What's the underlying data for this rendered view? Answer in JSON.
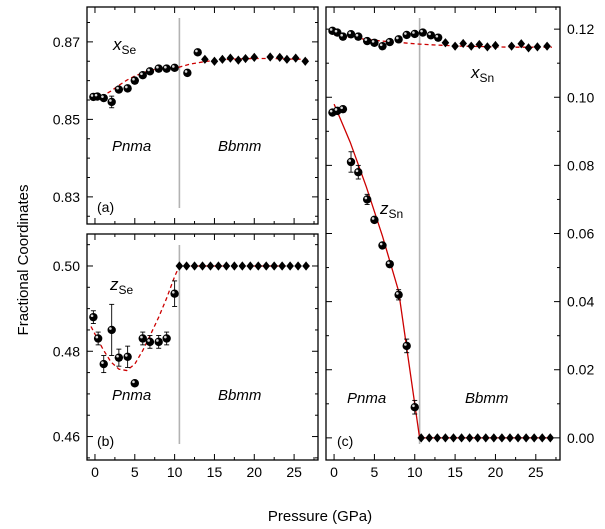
{
  "ylabel": "Fractional Coordinates",
  "xlabel": "Pressure (GPa)",
  "chart_data": [
    {
      "panel": "(a)",
      "type": "scatter",
      "series_label": {
        "main": "x",
        "sub": "Se"
      },
      "xlim": [
        -1,
        28
      ],
      "ylim": [
        0.823,
        0.879
      ],
      "xticks": [
        0,
        5,
        10,
        15,
        20,
        25
      ],
      "yticks": [
        0.83,
        0.85,
        0.87
      ],
      "ytick_labels": [
        "0.83",
        "0.85",
        "0.87"
      ],
      "transition_pressure": 10.6,
      "phase_labels": [
        "Pnma",
        "Bbmm"
      ],
      "fit_curve": {
        "style": "dashed",
        "color": "#cc0000",
        "x": [
          0,
          1,
          2,
          3,
          4,
          5,
          6,
          7,
          8,
          9,
          10,
          10.6,
          12,
          14,
          16,
          18,
          20,
          22,
          24,
          26,
          27
        ],
        "y": [
          0.8552,
          0.8561,
          0.8573,
          0.8588,
          0.8601,
          0.8612,
          0.862,
          0.8627,
          0.863,
          0.8632,
          0.8634,
          0.8635,
          0.8643,
          0.865,
          0.8654,
          0.8656,
          0.8657,
          0.8657,
          0.8656,
          0.8655,
          0.8654
        ]
      },
      "points": [
        {
          "x": -0.2,
          "y": 0.8558,
          "marker": "circle"
        },
        {
          "x": 0.3,
          "y": 0.8559,
          "marker": "circle"
        },
        {
          "x": 1.1,
          "y": 0.8555,
          "marker": "circle"
        },
        {
          "x": 2.1,
          "y": 0.8545,
          "marker": "circle",
          "err": 0.0015
        },
        {
          "x": 3.0,
          "y": 0.8577,
          "marker": "circle"
        },
        {
          "x": 4.1,
          "y": 0.858,
          "marker": "circle"
        },
        {
          "x": 5.0,
          "y": 0.86,
          "marker": "circle"
        },
        {
          "x": 6.0,
          "y": 0.8614,
          "marker": "circle"
        },
        {
          "x": 6.9,
          "y": 0.8624,
          "marker": "circle"
        },
        {
          "x": 8.0,
          "y": 0.8631,
          "marker": "circle"
        },
        {
          "x": 9.0,
          "y": 0.8631,
          "marker": "circle"
        },
        {
          "x": 10.0,
          "y": 0.8633,
          "marker": "circle"
        },
        {
          "x": 11.6,
          "y": 0.862,
          "marker": "circle"
        },
        {
          "x": 12.9,
          "y": 0.8673,
          "marker": "circle"
        },
        {
          "x": 13.8,
          "y": 0.8655,
          "marker": "diamond"
        },
        {
          "x": 15.0,
          "y": 0.865,
          "marker": "diamond"
        },
        {
          "x": 16.0,
          "y": 0.8655,
          "marker": "diamond"
        },
        {
          "x": 17.0,
          "y": 0.8658,
          "marker": "diamond"
        },
        {
          "x": 18.0,
          "y": 0.8653,
          "marker": "diamond"
        },
        {
          "x": 18.9,
          "y": 0.8657,
          "marker": "diamond"
        },
        {
          "x": 20.0,
          "y": 0.866,
          "marker": "diamond"
        },
        {
          "x": 22.0,
          "y": 0.8661,
          "marker": "diamond"
        },
        {
          "x": 23.2,
          "y": 0.866,
          "marker": "diamond"
        },
        {
          "x": 24.1,
          "y": 0.8655,
          "marker": "diamond"
        },
        {
          "x": 25.2,
          "y": 0.8658,
          "marker": "diamond"
        },
        {
          "x": 26.4,
          "y": 0.865,
          "marker": "diamond"
        }
      ]
    },
    {
      "panel": "(b)",
      "type": "scatter",
      "series_label": {
        "main": "z",
        "sub": "Se"
      },
      "xlim": [
        -1,
        28
      ],
      "ylim": [
        0.4545,
        0.5075
      ],
      "xticks": [
        0,
        5,
        10,
        15,
        20,
        25
      ],
      "xtick_labels": [
        "0",
        "5",
        "10",
        "15",
        "20",
        "25"
      ],
      "yticks": [
        0.46,
        0.48,
        0.5
      ],
      "ytick_labels": [
        "0.46",
        "0.48",
        "0.50"
      ],
      "transition_pressure": 10.6,
      "phase_labels": [
        "Pnma",
        "Bbmm"
      ],
      "fit_curve": {
        "style": "dashed",
        "color": "#cc0000",
        "x": [
          -0.5,
          0,
          1,
          2,
          3,
          4,
          5,
          6,
          7,
          8,
          9,
          10,
          10.6,
          12,
          14,
          16,
          18,
          20,
          22,
          24,
          26,
          27
        ],
        "y": [
          0.4858,
          0.484,
          0.4805,
          0.4775,
          0.4758,
          0.4755,
          0.477,
          0.4802,
          0.484,
          0.488,
          0.4925,
          0.4975,
          0.5,
          0.5,
          0.5,
          0.5,
          0.5,
          0.5,
          0.5,
          0.5,
          0.5,
          0.5
        ]
      },
      "points": [
        {
          "x": -0.2,
          "y": 0.488,
          "marker": "circle",
          "err": 0.0015
        },
        {
          "x": 0.4,
          "y": 0.483,
          "marker": "circle",
          "err": 0.0015
        },
        {
          "x": 1.1,
          "y": 0.477,
          "marker": "circle",
          "err": 0.002
        },
        {
          "x": 2.1,
          "y": 0.485,
          "marker": "circle",
          "err": 0.006
        },
        {
          "x": 3.0,
          "y": 0.4785,
          "marker": "circle",
          "err": 0.002
        },
        {
          "x": 4.1,
          "y": 0.4787,
          "marker": "circle",
          "err": 0.0025
        },
        {
          "x": 5.0,
          "y": 0.4725,
          "marker": "circle"
        },
        {
          "x": 6.0,
          "y": 0.483,
          "marker": "circle",
          "err": 0.0015
        },
        {
          "x": 6.9,
          "y": 0.4822,
          "marker": "circle",
          "err": 0.0015
        },
        {
          "x": 8.0,
          "y": 0.4822,
          "marker": "circle",
          "err": 0.0015
        },
        {
          "x": 9.0,
          "y": 0.483,
          "marker": "circle",
          "err": 0.0015
        },
        {
          "x": 10.0,
          "y": 0.4935,
          "marker": "circle",
          "err": 0.003
        },
        {
          "x": 10.6,
          "y": 0.5,
          "marker": "diamond"
        },
        {
          "x": 11.5,
          "y": 0.5,
          "marker": "diamond"
        },
        {
          "x": 12.5,
          "y": 0.5,
          "marker": "diamond"
        },
        {
          "x": 13.5,
          "y": 0.5,
          "marker": "diamond"
        },
        {
          "x": 14.5,
          "y": 0.5,
          "marker": "diamond"
        },
        {
          "x": 15.5,
          "y": 0.5,
          "marker": "diamond"
        },
        {
          "x": 16.5,
          "y": 0.5,
          "marker": "diamond"
        },
        {
          "x": 17.5,
          "y": 0.5,
          "marker": "diamond"
        },
        {
          "x": 18.5,
          "y": 0.5,
          "marker": "diamond"
        },
        {
          "x": 19.5,
          "y": 0.5,
          "marker": "diamond"
        },
        {
          "x": 20.5,
          "y": 0.5,
          "marker": "diamond"
        },
        {
          "x": 21.5,
          "y": 0.5,
          "marker": "diamond"
        },
        {
          "x": 22.5,
          "y": 0.5,
          "marker": "diamond"
        },
        {
          "x": 23.5,
          "y": 0.5,
          "marker": "diamond"
        },
        {
          "x": 24.5,
          "y": 0.5,
          "marker": "diamond"
        },
        {
          "x": 25.5,
          "y": 0.5,
          "marker": "diamond"
        },
        {
          "x": 26.5,
          "y": 0.5,
          "marker": "diamond"
        }
      ]
    },
    {
      "panel": "(c)",
      "type": "scatter",
      "xlim": [
        -1,
        28
      ],
      "ylim": [
        -0.0065,
        0.1265
      ],
      "xticks": [
        0,
        5,
        10,
        15,
        20,
        25
      ],
      "xtick_labels": [
        "0",
        "5",
        "10",
        "15",
        "20",
        "25"
      ],
      "yticks": [
        0.0,
        0.02,
        0.04,
        0.06,
        0.08,
        0.1,
        0.12
      ],
      "ytick_labels": [
        "0.00",
        "0.02",
        "0.04",
        "0.06",
        "0.08",
        "0.10",
        "0.12"
      ],
      "yaxis_side": "right",
      "transition_pressure": 10.6,
      "phase_labels": [
        "Pnma",
        "Bbmm"
      ],
      "series": [
        {
          "label": {
            "main": "x",
            "sub": "Sn"
          },
          "fit_curve": {
            "style": "dashed",
            "color": "#cc0000",
            "x": [
              0,
              2,
              4,
              6,
              8,
              10,
              12,
              14,
              16,
              18,
              20,
              22,
              24,
              26,
              27
            ],
            "y": [
              0.1183,
              0.1176,
              0.117,
              0.1165,
              0.1161,
              0.1157,
              0.1154,
              0.1152,
              0.115,
              0.1149,
              0.1148,
              0.1147,
              0.1147,
              0.1147,
              0.1147
            ]
          },
          "points": [
            {
              "x": -0.2,
              "y": 0.1195,
              "marker": "circle"
            },
            {
              "x": 0.4,
              "y": 0.119,
              "marker": "circle"
            },
            {
              "x": 1.1,
              "y": 0.1178,
              "marker": "circle"
            },
            {
              "x": 2.1,
              "y": 0.1185,
              "marker": "circle"
            },
            {
              "x": 3.0,
              "y": 0.1178,
              "marker": "circle"
            },
            {
              "x": 4.1,
              "y": 0.1165,
              "marker": "circle"
            },
            {
              "x": 5.0,
              "y": 0.116,
              "marker": "circle"
            },
            {
              "x": 6.0,
              "y": 0.115,
              "marker": "circle"
            },
            {
              "x": 6.9,
              "y": 0.1162,
              "marker": "circle"
            },
            {
              "x": 8.0,
              "y": 0.117,
              "marker": "circle"
            },
            {
              "x": 9.0,
              "y": 0.1183,
              "marker": "circle"
            },
            {
              "x": 10.0,
              "y": 0.1186,
              "marker": "circle"
            },
            {
              "x": 11.0,
              "y": 0.119,
              "marker": "circle"
            },
            {
              "x": 12.0,
              "y": 0.1182,
              "marker": "circle"
            },
            {
              "x": 12.9,
              "y": 0.1175,
              "marker": "circle"
            },
            {
              "x": 13.8,
              "y": 0.116,
              "marker": "diamond"
            },
            {
              "x": 15.0,
              "y": 0.115,
              "marker": "diamond"
            },
            {
              "x": 16.0,
              "y": 0.1158,
              "marker": "diamond"
            },
            {
              "x": 17.0,
              "y": 0.115,
              "marker": "diamond"
            },
            {
              "x": 18.0,
              "y": 0.1155,
              "marker": "diamond"
            },
            {
              "x": 19.0,
              "y": 0.1148,
              "marker": "diamond"
            },
            {
              "x": 20.0,
              "y": 0.1152,
              "marker": "diamond"
            },
            {
              "x": 22.0,
              "y": 0.115,
              "marker": "diamond"
            },
            {
              "x": 23.2,
              "y": 0.1157,
              "marker": "diamond"
            },
            {
              "x": 24.1,
              "y": 0.1145,
              "marker": "diamond"
            },
            {
              "x": 25.2,
              "y": 0.1148,
              "marker": "diamond"
            },
            {
              "x": 26.4,
              "y": 0.115,
              "marker": "diamond"
            }
          ]
        },
        {
          "label": {
            "main": "z",
            "sub": "Sn"
          },
          "fit_curve": {
            "style": "solid",
            "color": "#cc0000",
            "x": [
              0,
              2,
              4,
              6,
              8,
              10.6,
              12,
              14,
              16,
              18,
              20,
              22,
              24,
              26,
              27
            ],
            "y": [
              0.098,
              0.0868,
              0.0737,
              0.0592,
              0.0431,
              0.0,
              0.0,
              0.0,
              0.0,
              0.0,
              0.0,
              0.0,
              0.0,
              0.0,
              0.0
            ]
          },
          "points": [
            {
              "x": -0.2,
              "y": 0.0955,
              "marker": "circle"
            },
            {
              "x": 0.4,
              "y": 0.096,
              "marker": "circle"
            },
            {
              "x": 1.1,
              "y": 0.0965,
              "marker": "circle"
            },
            {
              "x": 2.1,
              "y": 0.081,
              "marker": "circle",
              "err": 0.003
            },
            {
              "x": 3.0,
              "y": 0.078,
              "marker": "circle",
              "err": 0.002
            },
            {
              "x": 4.1,
              "y": 0.07,
              "marker": "circle",
              "err": 0.0015
            },
            {
              "x": 5.0,
              "y": 0.064,
              "marker": "circle"
            },
            {
              "x": 6.0,
              "y": 0.0565,
              "marker": "circle"
            },
            {
              "x": 6.9,
              "y": 0.051,
              "marker": "circle"
            },
            {
              "x": 8.0,
              "y": 0.042,
              "marker": "circle",
              "err": 0.0015
            },
            {
              "x": 9.0,
              "y": 0.027,
              "marker": "circle",
              "err": 0.002
            },
            {
              "x": 10.0,
              "y": 0.009,
              "marker": "circle",
              "err": 0.002
            },
            {
              "x": 10.8,
              "y": 0.0,
              "marker": "diamond"
            },
            {
              "x": 11.8,
              "y": 0.0,
              "marker": "diamond"
            },
            {
              "x": 12.8,
              "y": 0.0,
              "marker": "diamond"
            },
            {
              "x": 13.8,
              "y": 0.0,
              "marker": "diamond"
            },
            {
              "x": 14.8,
              "y": 0.0,
              "marker": "diamond"
            },
            {
              "x": 15.8,
              "y": 0.0,
              "marker": "diamond"
            },
            {
              "x": 16.8,
              "y": 0.0,
              "marker": "diamond"
            },
            {
              "x": 17.8,
              "y": 0.0,
              "marker": "diamond"
            },
            {
              "x": 18.8,
              "y": 0.0,
              "marker": "diamond"
            },
            {
              "x": 19.8,
              "y": 0.0,
              "marker": "diamond"
            },
            {
              "x": 20.8,
              "y": 0.0,
              "marker": "diamond"
            },
            {
              "x": 21.8,
              "y": 0.0,
              "marker": "diamond"
            },
            {
              "x": 22.8,
              "y": 0.0,
              "marker": "diamond"
            },
            {
              "x": 23.8,
              "y": 0.0,
              "marker": "diamond"
            },
            {
              "x": 24.8,
              "y": 0.0,
              "marker": "diamond"
            },
            {
              "x": 25.8,
              "y": 0.0,
              "marker": "diamond"
            },
            {
              "x": 26.8,
              "y": 0.0,
              "marker": "diamond"
            }
          ]
        }
      ]
    }
  ]
}
